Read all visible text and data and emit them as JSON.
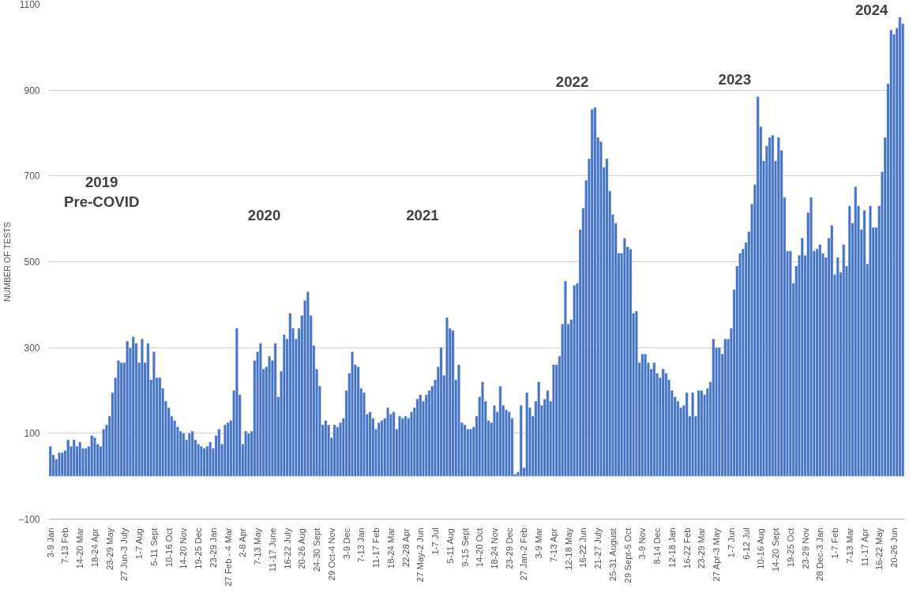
{
  "chart_data": {
    "type": "bar",
    "ylabel": "NUMBER OF TESTS",
    "color": "#4472c4",
    "ylim": [
      -100,
      1100
    ],
    "yticks": [
      -100,
      100,
      300,
      500,
      700,
      900,
      1100
    ],
    "grid": "y",
    "categories": [
      "3-9 Jan",
      null,
      null,
      null,
      null,
      "7-13 Feb",
      null,
      null,
      null,
      null,
      "14-20 Mar",
      null,
      null,
      null,
      null,
      "18-24 Apr",
      null,
      null,
      null,
      null,
      "23-29 May",
      null,
      null,
      null,
      null,
      "27 Jun-3 July",
      null,
      null,
      null,
      null,
      "1-7 Aug",
      null,
      null,
      null,
      null,
      "5-11 Sept",
      null,
      null,
      null,
      null,
      "10-16 Oct",
      null,
      null,
      null,
      null,
      "14-20 Nov",
      null,
      null,
      null,
      null,
      "19-25 Dec",
      null,
      null,
      null,
      null,
      "23-29 Jan",
      null,
      null,
      null,
      null,
      "27 Feb - 4 Mar",
      null,
      null,
      null,
      null,
      "2-8 Apr",
      null,
      null,
      null,
      null,
      "7-13 May",
      null,
      null,
      null,
      null,
      "11-17 June",
      null,
      null,
      null,
      null,
      "16-22 July",
      null,
      null,
      null,
      null,
      "20-26 Aug",
      null,
      null,
      null,
      null,
      "24-30 Sept",
      null,
      null,
      null,
      null,
      "29 Oct-4 Nov",
      null,
      null,
      null,
      null,
      "3-9 Dec",
      null,
      null,
      null,
      null,
      "7-13 Jan",
      null,
      null,
      null,
      null,
      "11-17 Feb",
      null,
      null,
      null,
      null,
      "18-24 Mar",
      null,
      null,
      null,
      null,
      "22-28 Apr",
      null,
      null,
      null,
      null,
      "27 May-2 Jun",
      null,
      null,
      null,
      null,
      "1-7 Jul",
      null,
      null,
      null,
      null,
      "5-11 Aug",
      null,
      null,
      null,
      null,
      "9-15 Sept",
      null,
      null,
      null,
      null,
      "14-20 Oct",
      null,
      null,
      null,
      null,
      "18-24 Nov",
      null,
      null,
      null,
      null,
      "23-29 Dec",
      null,
      null,
      null,
      null,
      "27 Jan-2 Feb",
      null,
      null,
      null,
      null,
      "3-9 Mar",
      null,
      null,
      null,
      null,
      "7-13 Apr",
      null,
      null,
      null,
      null,
      "12-18 May",
      null,
      null,
      null,
      null,
      "16-22 Jun",
      null,
      null,
      null,
      null,
      "21-27 July",
      null,
      null,
      null,
      null,
      "25-31 August",
      null,
      null,
      null,
      null,
      "29 Sept-5 Oct",
      null,
      null,
      null,
      null,
      "3-9 Nov",
      null,
      null,
      null,
      null,
      "8-14 Dec",
      null,
      null,
      null,
      null,
      "12-18 Jan",
      null,
      null,
      null,
      null,
      "16-22 Feb",
      null,
      null,
      null,
      null,
      "23-29 Mar",
      null,
      null,
      null,
      null,
      "27 Apr-3 May",
      null,
      null,
      null,
      null,
      "1-7 Jun",
      null,
      null,
      null,
      null,
      "6-12 Jul",
      null,
      null,
      null,
      null,
      "10-16 Aug",
      null,
      null,
      null,
      null,
      "14-20 Sept",
      null,
      null,
      null,
      null,
      "19-25 Oct",
      null,
      null,
      null,
      null,
      "23-29 Nov",
      null,
      null,
      null,
      null,
      "28 Dec-3 Jan",
      null,
      null,
      null,
      null,
      "1-7 Feb",
      null,
      null,
      null,
      null,
      "7-13 Mar",
      null,
      null,
      null,
      null,
      "11-17 Apr",
      null,
      null,
      null,
      null,
      "16-22 May",
      null,
      null,
      null,
      null,
      "20-26 Jun",
      null,
      null,
      null
    ],
    "values": [
      70,
      50,
      40,
      55,
      55,
      60,
      85,
      70,
      85,
      70,
      80,
      65,
      65,
      70,
      95,
      90,
      75,
      70,
      110,
      120,
      140,
      195,
      230,
      270,
      265,
      265,
      315,
      300,
      325,
      310,
      265,
      320,
      265,
      310,
      225,
      290,
      230,
      230,
      205,
      175,
      160,
      140,
      130,
      115,
      105,
      100,
      85,
      100,
      105,
      85,
      75,
      70,
      65,
      70,
      80,
      65,
      95,
      110,
      75,
      120,
      125,
      130,
      200,
      345,
      190,
      75,
      105,
      100,
      105,
      270,
      290,
      310,
      250,
      255,
      280,
      270,
      310,
      185,
      245,
      330,
      320,
      380,
      345,
      320,
      345,
      375,
      410,
      430,
      375,
      305,
      250,
      210,
      120,
      130,
      120,
      90,
      120,
      115,
      125,
      135,
      200,
      240,
      290,
      260,
      255,
      205,
      195,
      145,
      150,
      135,
      110,
      125,
      130,
      135,
      160,
      145,
      150,
      110,
      140,
      135,
      140,
      135,
      150,
      160,
      180,
      190,
      175,
      190,
      200,
      210,
      225,
      255,
      300,
      235,
      370,
      345,
      340,
      225,
      260,
      125,
      120,
      110,
      110,
      115,
      140,
      185,
      220,
      175,
      130,
      125,
      165,
      150,
      210,
      165,
      155,
      150,
      135,
      5,
      10,
      165,
      20,
      195,
      160,
      140,
      175,
      220,
      165,
      180,
      200,
      175,
      260,
      260,
      280,
      355,
      455,
      355,
      365,
      445,
      450,
      575,
      625,
      690,
      740,
      855,
      860,
      790,
      780,
      720,
      740,
      665,
      610,
      590,
      520,
      520,
      555,
      535,
      530,
      380,
      385,
      265,
      285,
      285,
      265,
      250,
      265,
      240,
      230,
      250,
      240,
      225,
      200,
      185,
      175,
      160,
      165,
      195,
      140,
      195,
      140,
      200,
      200,
      190,
      205,
      220,
      320,
      300,
      300,
      285,
      320,
      320,
      345,
      435,
      490,
      520,
      530,
      545,
      570,
      635,
      680,
      885,
      815,
      735,
      770,
      790,
      795,
      735,
      790,
      760,
      650,
      525,
      525,
      450,
      490,
      515,
      555,
      515,
      615,
      650,
      525,
      530,
      540,
      520,
      510,
      555,
      585,
      470,
      510,
      475,
      540,
      490,
      630,
      590,
      675,
      630,
      575,
      620,
      495,
      630,
      580,
      580,
      630,
      710,
      790,
      915,
      1040,
      1030,
      1045,
      1070,
      1055
    ],
    "annotations": [
      "2019\nPre-COVID",
      "2020",
      "2021",
      "2022",
      "2023",
      "2024"
    ]
  }
}
